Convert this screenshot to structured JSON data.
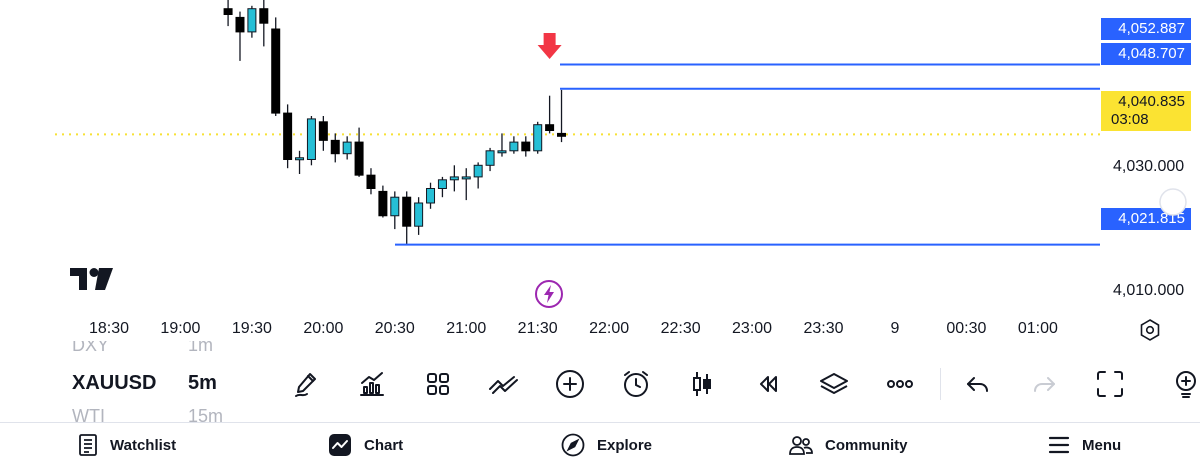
{
  "chart": {
    "symbol": "XAUUSD",
    "interval": "5m",
    "ghost_symbols_above": [
      "DXY",
      "1m"
    ],
    "ghost_symbols_below": [
      "WTI",
      "15m"
    ],
    "colors": {
      "up": "#22ab94",
      "up_fill": "#26bfd6",
      "down": "#000000",
      "hline": "#2962ff",
      "current_price_line": "#f7e135",
      "arrow": "#f23645"
    },
    "price_labels": {
      "hline_1": "4,052.887",
      "hline_2": "4,048.707",
      "current_price": "4,040.835",
      "countdown": "03:08",
      "hline_3": "4,021.815"
    },
    "y_axis_labels": [
      "4,030.000",
      "4,010.000"
    ],
    "time_axis_labels": [
      "18:30",
      "19:00",
      "19:30",
      "20:00",
      "20:30",
      "21:00",
      "21:30",
      "22:00",
      "22:30",
      "23:00",
      "23:30",
      "9",
      "00:30",
      "01:00"
    ],
    "candles": [
      {
        "o": 4062.5,
        "h": 4064.0,
        "l": 4059.5,
        "c": 4061.5
      },
      {
        "o": 4061.0,
        "h": 4062.0,
        "l": 4053.5,
        "c": 4058.5
      },
      {
        "o": 4058.5,
        "h": 4063.0,
        "l": 4057.5,
        "c": 4062.5
      },
      {
        "o": 4062.5,
        "h": 4064.0,
        "l": 4056.0,
        "c": 4060.0
      },
      {
        "o": 4059.0,
        "h": 4061.0,
        "l": 4044.0,
        "c": 4044.5
      },
      {
        "o": 4044.5,
        "h": 4046.0,
        "l": 4035.0,
        "c": 4036.5
      },
      {
        "o": 4036.5,
        "h": 4038.0,
        "l": 4034.0,
        "c": 4036.8
      },
      {
        "o": 4036.5,
        "h": 4044.0,
        "l": 4035.5,
        "c": 4043.5
      },
      {
        "o": 4043.0,
        "h": 4044.0,
        "l": 4038.0,
        "c": 4039.8
      },
      {
        "o": 4039.8,
        "h": 4041.0,
        "l": 4036.0,
        "c": 4037.5
      },
      {
        "o": 4037.5,
        "h": 4040.5,
        "l": 4036.5,
        "c": 4039.5
      },
      {
        "o": 4039.5,
        "h": 4042.0,
        "l": 4033.5,
        "c": 4033.8
      },
      {
        "o": 4033.8,
        "h": 4035.0,
        "l": 4030.5,
        "c": 4031.5
      },
      {
        "o": 4031.0,
        "h": 4032.0,
        "l": 4026.5,
        "c": 4026.8
      },
      {
        "o": 4026.8,
        "h": 4031.0,
        "l": 4024.5,
        "c": 4030.0
      },
      {
        "o": 4030.0,
        "h": 4031.0,
        "l": 4021.8,
        "c": 4025.0
      },
      {
        "o": 4025.0,
        "h": 4030.0,
        "l": 4023.5,
        "c": 4029.0
      },
      {
        "o": 4029.0,
        "h": 4032.5,
        "l": 4028.0,
        "c": 4031.5
      },
      {
        "o": 4031.5,
        "h": 4033.5,
        "l": 4030.0,
        "c": 4033.0
      },
      {
        "o": 4033.0,
        "h": 4035.5,
        "l": 4031.0,
        "c": 4033.5
      },
      {
        "o": 4033.5,
        "h": 4035.0,
        "l": 4029.5,
        "c": 4033.5
      },
      {
        "o": 4033.5,
        "h": 4036.0,
        "l": 4031.5,
        "c": 4035.5
      },
      {
        "o": 4035.5,
        "h": 4038.5,
        "l": 4034.5,
        "c": 4038.0
      },
      {
        "o": 4038.0,
        "h": 4041.0,
        "l": 4037.0,
        "c": 4038.0
      },
      {
        "o": 4038.0,
        "h": 4040.5,
        "l": 4037.5,
        "c": 4039.5
      },
      {
        "o": 4039.5,
        "h": 4040.5,
        "l": 4037.0,
        "c": 4038.0
      },
      {
        "o": 4038.0,
        "h": 4043.0,
        "l": 4037.5,
        "c": 4042.5
      },
      {
        "o": 4042.5,
        "h": 4047.5,
        "l": 4041.0,
        "c": 4041.5
      },
      {
        "o": 4041.0,
        "h": 4048.5,
        "l": 4039.5,
        "c": 4040.5
      }
    ],
    "current_price": 4040.835,
    "hlines": [
      4052.887,
      4048.707,
      4021.815
    ],
    "y_range": [
      4004.0,
      4064.0
    ],
    "x_range": [
      "18:07",
      "01:20"
    ]
  },
  "toolbar": {
    "icons": [
      "pen-icon",
      "indicators-icon",
      "layouts-icon",
      "compare-icon",
      "add-icon",
      "alarm-icon",
      "candle-type-icon",
      "replay-icon",
      "layers-icon",
      "more-icon",
      "undo-icon",
      "redo-icon",
      "fullscreen-icon",
      "lightbulb-icon"
    ]
  },
  "bottom_nav": {
    "watchlist": "Watchlist",
    "chart": "Chart",
    "explore": "Explore",
    "community": "Community",
    "menu": "Menu"
  }
}
